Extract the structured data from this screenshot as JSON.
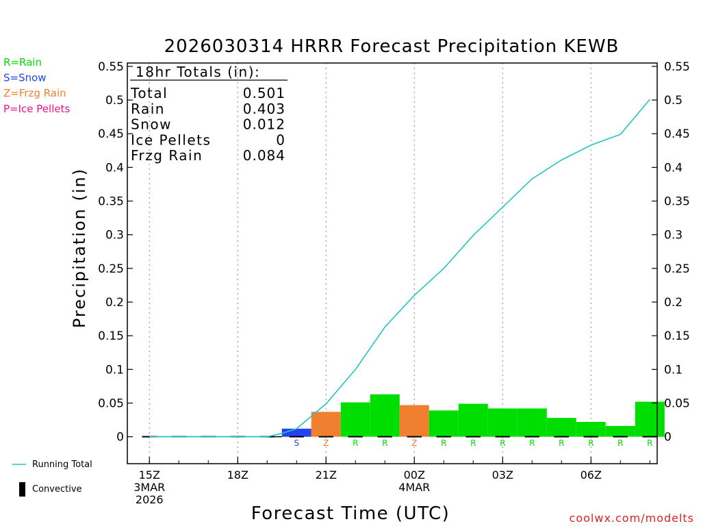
{
  "chart_data": {
    "type": "bar",
    "title": "2026030314 HRRR Forecast Precipitation KEWB",
    "ylabel": "Precipitation (in)",
    "xlabel": "Forecast Time (UTC)",
    "ylim": [
      -0.04,
      0.555
    ],
    "yticks": [
      0,
      0.05,
      0.1,
      0.15,
      0.2,
      0.25,
      0.3,
      0.35,
      0.4,
      0.45,
      0.5,
      0.55
    ],
    "ytick_labels": [
      "0",
      "0.05",
      "0.1",
      "0.15",
      "0.2",
      "0.25",
      "0.3",
      "0.35",
      "0.4",
      "0.45",
      "0.5",
      "0.55"
    ],
    "xlim": [
      14.25,
      32.25
    ],
    "xticks": [
      {
        "x": 15,
        "lines": [
          "15Z",
          "3MAR",
          "2026"
        ]
      },
      {
        "x": 18,
        "lines": [
          "18Z"
        ]
      },
      {
        "x": 21,
        "lines": [
          "21Z"
        ]
      },
      {
        "x": 24,
        "lines": [
          "00Z",
          "4MAR"
        ]
      },
      {
        "x": 27,
        "lines": [
          "03Z"
        ]
      },
      {
        "x": 30,
        "lines": [
          "06Z"
        ]
      }
    ],
    "precip_types": {
      "R": "#00dd00",
      "S": "#2244ee",
      "Z": "#f08030",
      "P": "#ee1188"
    },
    "bars": [
      {
        "hour": 15,
        "value": 0,
        "type": ""
      },
      {
        "hour": 16,
        "value": 0,
        "type": ""
      },
      {
        "hour": 17,
        "value": 0,
        "type": ""
      },
      {
        "hour": 18,
        "value": 0,
        "type": ""
      },
      {
        "hour": 19,
        "value": 0,
        "type": ""
      },
      {
        "hour": 20,
        "value": 0.012,
        "type": "S"
      },
      {
        "hour": 21,
        "value": 0.037,
        "type": "Z"
      },
      {
        "hour": 22,
        "value": 0.051,
        "type": "R"
      },
      {
        "hour": 23,
        "value": 0.063,
        "type": "R"
      },
      {
        "hour": 24,
        "value": 0.047,
        "type": "Z"
      },
      {
        "hour": 25,
        "value": 0.039,
        "type": "R"
      },
      {
        "hour": 26,
        "value": 0.049,
        "type": "R"
      },
      {
        "hour": 27,
        "value": 0.042,
        "type": "R"
      },
      {
        "hour": 28,
        "value": 0.042,
        "type": "R"
      },
      {
        "hour": 29,
        "value": 0.028,
        "type": "R"
      },
      {
        "hour": 30,
        "value": 0.022,
        "type": "R"
      },
      {
        "hour": 31,
        "value": 0.016,
        "type": "R"
      },
      {
        "hour": 32,
        "value": 0.052,
        "type": "R"
      }
    ],
    "running_total": {
      "name": "Running Total",
      "color": "#22c4c4",
      "x": [
        15,
        16,
        17,
        18,
        19,
        19.5,
        20,
        21,
        22,
        23,
        24,
        25,
        26,
        27,
        28,
        29,
        30,
        31,
        32
      ],
      "y": [
        0,
        0,
        0,
        0,
        0,
        0.005,
        0.012,
        0.049,
        0.1,
        0.163,
        0.21,
        0.25,
        0.299,
        0.341,
        0.383,
        0.411,
        0.433,
        0.449,
        0.501
      ]
    },
    "totals_box": {
      "heading": "18hr Totals (in):",
      "rows": [
        {
          "label": "Total",
          "value": "0.501"
        },
        {
          "label": "Rain",
          "value": "0.403"
        },
        {
          "label": "Snow",
          "value": "0.012"
        },
        {
          "label": "Ice Pellets",
          "value": "0"
        },
        {
          "label": "Frzg Rain",
          "value": "0.084"
        }
      ]
    },
    "type_legend": [
      {
        "text": "R=Rain",
        "code": "R"
      },
      {
        "text": "S=Snow",
        "code": "S"
      },
      {
        "text": "Z=Frzg Rain",
        "code": "Z"
      },
      {
        "text": "P=Ice Pellets",
        "code": "P"
      }
    ],
    "bottom_legend": [
      {
        "text": "Running Total",
        "kind": "line"
      },
      {
        "text": "Convective",
        "kind": "bar"
      }
    ]
  },
  "credit": "coolwx.com/modelts"
}
